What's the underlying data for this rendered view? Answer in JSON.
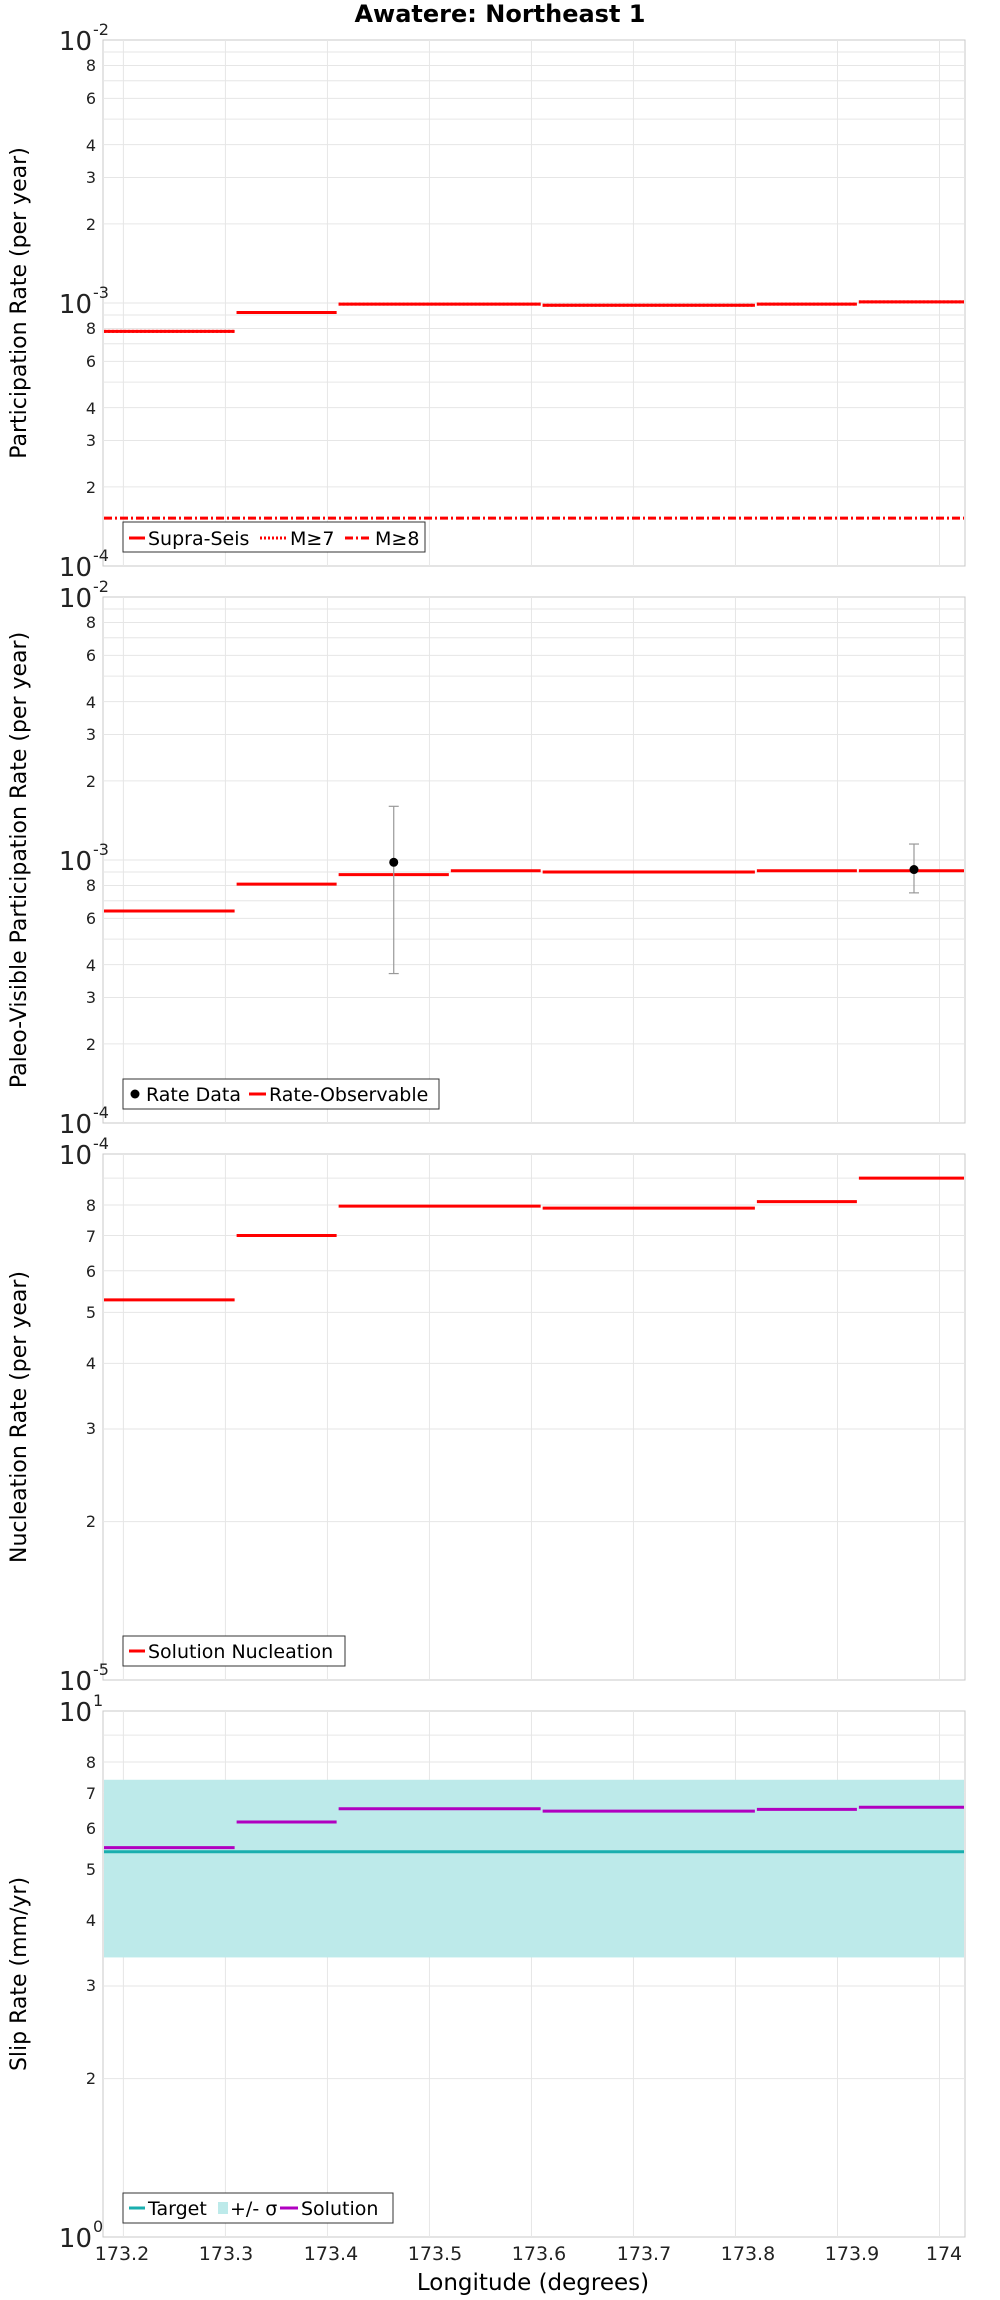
{
  "chart_data": [
    {
      "id": "participation",
      "type": "line",
      "title": "Awatere: Northeast 1",
      "ylabel": "Participation Rate (per year)",
      "xlabel": "",
      "yscale": "log",
      "xlim": [
        173.18,
        174.025
      ],
      "ylim": [
        0.0001,
        0.01
      ],
      "series": [
        {
          "name": "Supra-Seis",
          "style": "solid",
          "color": "#ff0000",
          "steps": [
            {
              "x0": 173.18,
              "x1": 173.31,
              "y": 0.00078
            },
            {
              "x0": 173.31,
              "x1": 173.41,
              "y": 0.00092
            },
            {
              "x0": 173.41,
              "x1": 173.61,
              "y": 0.00099
            },
            {
              "x0": 173.61,
              "x1": 173.82,
              "y": 0.00098
            },
            {
              "x0": 173.82,
              "x1": 173.92,
              "y": 0.00099
            },
            {
              "x0": 173.92,
              "x1": 174.025,
              "y": 0.00101
            }
          ]
        },
        {
          "name": "M≥7",
          "style": "dotted",
          "color": "#ff0000",
          "steps": [
            {
              "x0": 173.18,
              "x1": 173.31,
              "y": 0.00078
            },
            {
              "x0": 173.31,
              "x1": 173.41,
              "y": 0.00092
            },
            {
              "x0": 173.41,
              "x1": 173.61,
              "y": 0.00099
            },
            {
              "x0": 173.61,
              "x1": 173.82,
              "y": 0.00098
            },
            {
              "x0": 173.82,
              "x1": 173.92,
              "y": 0.00099
            },
            {
              "x0": 173.92,
              "x1": 174.025,
              "y": 0.00101
            }
          ]
        },
        {
          "name": "M≥8",
          "style": "dashdot",
          "color": "#ff0000",
          "steps": [
            {
              "x0": 173.18,
              "x1": 174.025,
              "y": 0.000152
            }
          ]
        }
      ],
      "legend": [
        "Supra-Seis",
        "M≥7",
        "M≥8"
      ],
      "legend_position": "bottom-left"
    },
    {
      "id": "paleo",
      "type": "line",
      "ylabel": "Paleo-Visible Participation Rate (per year)",
      "xlabel": "",
      "yscale": "log",
      "xlim": [
        173.18,
        174.025
      ],
      "ylim": [
        0.0001,
        0.01
      ],
      "series": [
        {
          "name": "Rate-Observable",
          "style": "solid",
          "color": "#ff0000",
          "steps": [
            {
              "x0": 173.18,
              "x1": 173.31,
              "y": 0.00064
            },
            {
              "x0": 173.31,
              "x1": 173.41,
              "y": 0.00081
            },
            {
              "x0": 173.41,
              "x1": 173.52,
              "y": 0.00088
            },
            {
              "x0": 173.52,
              "x1": 173.61,
              "y": 0.00091
            },
            {
              "x0": 173.61,
              "x1": 173.82,
              "y": 0.0009
            },
            {
              "x0": 173.82,
              "x1": 173.92,
              "y": 0.00091
            },
            {
              "x0": 173.92,
              "x1": 174.025,
              "y": 0.00091
            }
          ]
        }
      ],
      "points": {
        "name": "Rate Data",
        "color": "#000000",
        "data": [
          {
            "x": 173.465,
            "y": 0.00098,
            "ylo": 0.00037,
            "yhi": 0.0016
          },
          {
            "x": 173.975,
            "y": 0.00092,
            "ylo": 0.00075,
            "yhi": 0.00115
          }
        ]
      },
      "legend": [
        "Rate Data",
        "Rate-Observable"
      ],
      "legend_position": "bottom-left"
    },
    {
      "id": "nucleation",
      "type": "line",
      "ylabel": "Nucleation Rate (per year)",
      "xlabel": "",
      "yscale": "log",
      "xlim": [
        173.18,
        174.025
      ],
      "ylim": [
        1e-05,
        0.0001
      ],
      "series": [
        {
          "name": "Solution Nucleation",
          "style": "solid",
          "color": "#ff0000",
          "steps": [
            {
              "x0": 173.18,
              "x1": 173.31,
              "y": 5.28e-05
            },
            {
              "x0": 173.31,
              "x1": 173.41,
              "y": 7e-05
            },
            {
              "x0": 173.41,
              "x1": 173.61,
              "y": 7.96e-05
            },
            {
              "x0": 173.61,
              "x1": 173.82,
              "y": 7.89e-05
            },
            {
              "x0": 173.82,
              "x1": 173.92,
              "y": 8.12e-05
            },
            {
              "x0": 173.92,
              "x1": 174.025,
              "y": 9e-05
            }
          ]
        }
      ],
      "legend": [
        "Solution Nucleation"
      ],
      "legend_position": "bottom-left"
    },
    {
      "id": "slip",
      "type": "line",
      "ylabel": "Slip Rate (mm/yr)",
      "xlabel": "Longitude (degrees)",
      "yscale": "log",
      "xlim": [
        173.18,
        174.025
      ],
      "ylim": [
        1,
        10
      ],
      "band": {
        "name": "+/- σ",
        "color": "#bdeaea",
        "ymin": 3.4,
        "ymax": 7.4
      },
      "series": [
        {
          "name": "Target",
          "style": "solid",
          "color": "#1aaeae",
          "steps": [
            {
              "x0": 173.18,
              "x1": 174.025,
              "y": 5.4
            }
          ]
        },
        {
          "name": "Solution",
          "style": "solid",
          "color": "#b000c0",
          "steps": [
            {
              "x0": 173.18,
              "x1": 173.31,
              "y": 5.5
            },
            {
              "x0": 173.31,
              "x1": 173.41,
              "y": 6.15
            },
            {
              "x0": 173.41,
              "x1": 173.61,
              "y": 6.52
            },
            {
              "x0": 173.61,
              "x1": 173.82,
              "y": 6.45
            },
            {
              "x0": 173.82,
              "x1": 173.92,
              "y": 6.5
            },
            {
              "x0": 173.92,
              "x1": 174.025,
              "y": 6.56
            }
          ]
        }
      ],
      "legend": [
        "Target",
        "+/- σ",
        "Solution"
      ],
      "legend_position": "bottom-left"
    }
  ],
  "axes_text": {
    "x_ticks": [
      "173.2",
      "173.3",
      "173.4",
      "173.5",
      "173.6",
      "173.7",
      "173.8",
      "173.9",
      "174"
    ],
    "x_tick_values": [
      173.2,
      173.3,
      173.4,
      173.5,
      173.6,
      173.7,
      173.8,
      173.9,
      174.0
    ],
    "p1_ytick_major": [
      "10",
      "-2",
      "10",
      "-3",
      "10",
      "-4"
    ],
    "p1_ytick_minor": [
      "8",
      "6",
      "4",
      "3",
      "2",
      "8",
      "6",
      "4",
      "3",
      "2"
    ],
    "p2_ytick_major": [
      "10",
      "-2",
      "10",
      "-3",
      "10",
      "-4"
    ],
    "p2_ytick_minor": [
      "8",
      "6",
      "4",
      "3",
      "2",
      "8",
      "6",
      "4",
      "3",
      "2"
    ],
    "p3_ytick_major": [
      "10",
      "-4",
      "10",
      "-5"
    ],
    "p3_ytick_minor": [
      "8",
      "7",
      "6",
      "5",
      "4",
      "3",
      "2"
    ],
    "p4_ytick_major": [
      "10",
      "1",
      "10",
      "0"
    ],
    "p4_ytick_minor": [
      "8",
      "7",
      "6",
      "5",
      "4",
      "3",
      "2"
    ]
  },
  "colors": {
    "red": "#ff0000",
    "grid": "#e6e6e6",
    "frame": "#c8c8c8",
    "target": "#1aaeae",
    "solution": "#b000c0",
    "band": "#bdeaea",
    "errorbar": "#999999"
  }
}
